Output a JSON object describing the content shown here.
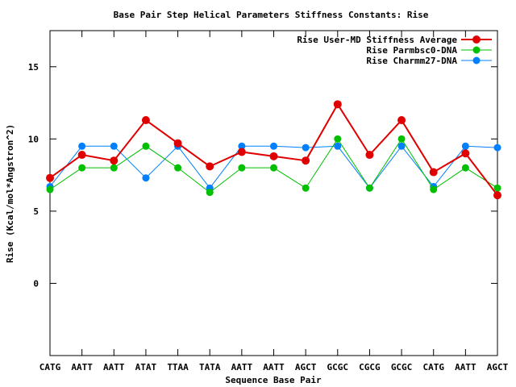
{
  "chart_data": {
    "type": "line",
    "title": "Base Pair Step Helical Parameters Stiffness Constants: Rise",
    "xlabel": "Sequence Base Pair",
    "ylabel": "Rise (Kcal/mol*Angstron^2)",
    "ylim": [
      -5,
      17.5
    ],
    "yticks": [
      0,
      5,
      10,
      15
    ],
    "grid": false,
    "legend_position": "top-right",
    "categories": [
      "CATG",
      "AATT",
      "AATT",
      "ATAT",
      "TTAA",
      "TATA",
      "AATT",
      "AATT",
      "AGCT",
      "GCGC",
      "CGCG",
      "GCGC",
      "CATG",
      "AATT",
      "AGCT"
    ],
    "series": [
      {
        "name": "Rise User-MD Stiffness Average",
        "color": "#e00000",
        "values": [
          7.3,
          8.9,
          8.5,
          11.3,
          9.7,
          8.1,
          9.1,
          8.8,
          8.5,
          12.4,
          8.9,
          11.3,
          7.7,
          9.0,
          6.1
        ]
      },
      {
        "name": "Rise Parmbsc0-DNA",
        "color": "#00c000",
        "values": [
          6.5,
          8.0,
          8.0,
          9.5,
          8.0,
          6.3,
          8.0,
          8.0,
          6.6,
          10.0,
          6.6,
          10.0,
          6.5,
          8.0,
          6.6
        ]
      },
      {
        "name": "Rise Charmm27-DNA",
        "color": "#0080ff",
        "values": [
          6.7,
          9.5,
          9.5,
          7.3,
          9.5,
          6.6,
          9.5,
          9.5,
          9.4,
          9.5,
          6.6,
          9.5,
          6.7,
          9.5,
          9.4
        ]
      }
    ]
  }
}
